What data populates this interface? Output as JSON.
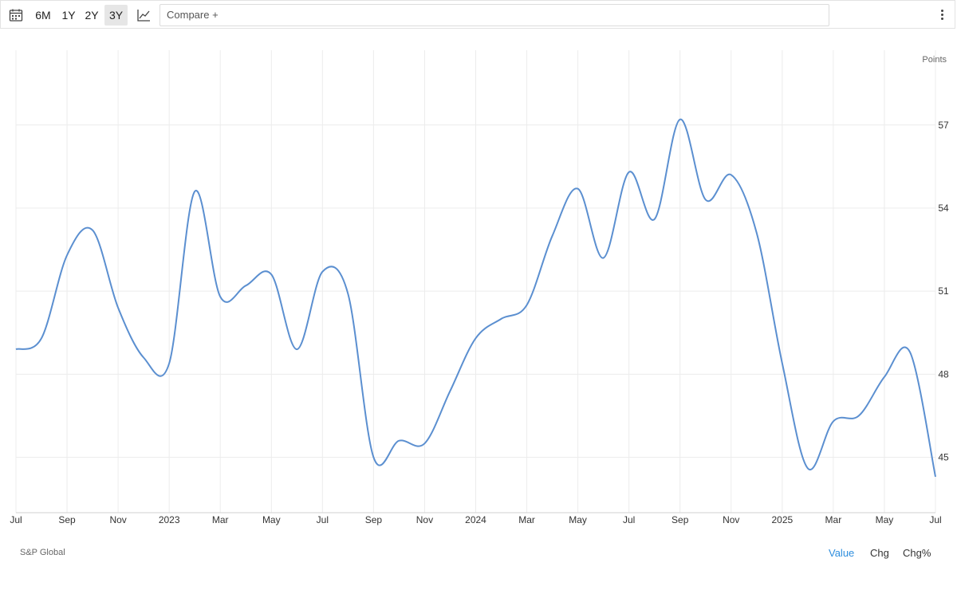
{
  "toolbar": {
    "calendar_icon": "calendar-icon",
    "ranges": [
      "6M",
      "1Y",
      "2Y",
      "3Y"
    ],
    "active_range": "3Y",
    "chart_type_icon": "line-chart-icon",
    "compare_label": "Compare +",
    "menu_icon": "more-vertical-icon"
  },
  "footer": {
    "source": "S&P Global",
    "modes": [
      "Value",
      "Chg",
      "Chg%"
    ],
    "active_mode": "Value"
  },
  "colors": {
    "line": "#5b8fd0",
    "active_mode": "#2e8ede",
    "grid": "#ececec"
  },
  "chart_data": {
    "type": "line",
    "ylabel": "Points",
    "y_ticks": [
      45,
      48,
      51,
      54,
      57
    ],
    "ylim": [
      43,
      59.7
    ],
    "x_tick_labels": [
      "Jul",
      "Sep",
      "Nov",
      "2023",
      "Mar",
      "May",
      "Jul",
      "Sep",
      "Nov",
      "2024",
      "Mar",
      "May",
      "Jul",
      "Sep",
      "Nov",
      "2025",
      "Mar",
      "May",
      "Jul"
    ],
    "x_tick_dates": [
      "2022-07",
      "2022-09",
      "2022-11",
      "2023-01",
      "2023-03",
      "2023-05",
      "2023-07",
      "2023-09",
      "2023-11",
      "2024-01",
      "2024-03",
      "2024-05",
      "2024-07",
      "2024-09",
      "2024-11",
      "2025-01",
      "2025-03",
      "2025-05",
      "2025-07"
    ],
    "grid": true,
    "series": [
      {
        "x": [
          "2022-07",
          "2022-08",
          "2022-09",
          "2022-10",
          "2022-11",
          "2022-12",
          "2023-01",
          "2023-02",
          "2023-03",
          "2023-04",
          "2023-05",
          "2023-06",
          "2023-07",
          "2023-08",
          "2023-09",
          "2023-10",
          "2023-11",
          "2023-12",
          "2024-01",
          "2024-02",
          "2024-03",
          "2024-04",
          "2024-05",
          "2024-06",
          "2024-07",
          "2024-08",
          "2024-09",
          "2024-10",
          "2024-11",
          "2024-12",
          "2025-01",
          "2025-02",
          "2025-03",
          "2025-04",
          "2025-05",
          "2025-06",
          "2025-07"
        ],
        "values": [
          48.9,
          49.3,
          52.3,
          53.2,
          50.4,
          48.6,
          48.4,
          54.6,
          50.8,
          51.2,
          51.6,
          48.9,
          51.7,
          50.9,
          45.0,
          45.6,
          45.5,
          47.4,
          49.3,
          50.0,
          50.5,
          53.0,
          54.7,
          52.2,
          55.3,
          53.6,
          57.2,
          54.3,
          55.2,
          53.1,
          48.4,
          44.6,
          46.3,
          46.5,
          47.9,
          48.8,
          44.3
        ]
      }
    ]
  }
}
